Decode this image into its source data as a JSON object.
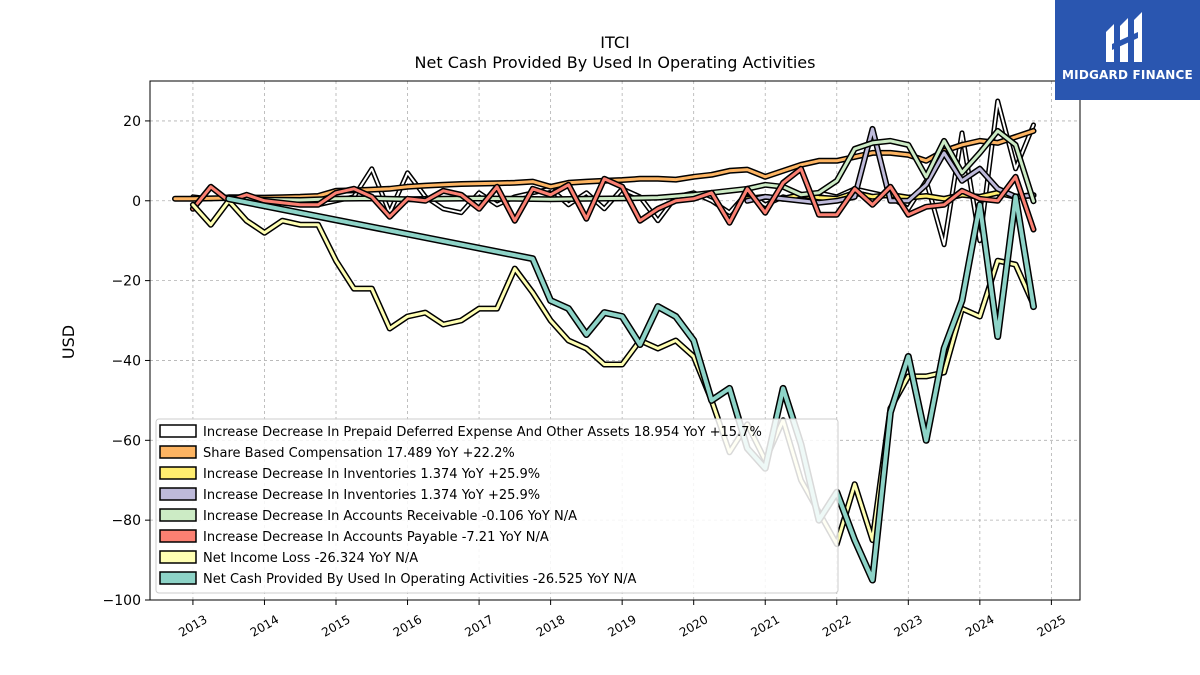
{
  "brand": {
    "name": "MIDGARD FINANCE",
    "bg": "#2a56b0"
  },
  "chart_data": {
    "type": "line",
    "title": "ITCI",
    "subtitle": "Net Cash Provided By Used In Operating Activities",
    "xlabel": "",
    "ylabel": "USD",
    "xlim": [
      2012.4,
      2025.4
    ],
    "ylim": [
      -100,
      30
    ],
    "xticks": [
      "2013",
      "2014",
      "2015",
      "2016",
      "2017",
      "2018",
      "2019",
      "2020",
      "2021",
      "2022",
      "2023",
      "2024",
      "2025"
    ],
    "yticks": [
      20,
      0,
      -20,
      -40,
      -60,
      -80,
      -100
    ],
    "grid": true,
    "legend_position": "lower-left",
    "series": [
      {
        "name": "Increase Decrease In Prepaid Deferred Expense And Other Assets  18.954 YoY +15.7%",
        "color": "#ffffff",
        "width": 2,
        "x": [
          2013.0,
          2013.25,
          2013.5,
          2013.75,
          2014.0,
          2014.25,
          2014.5,
          2014.75,
          2015.0,
          2015.25,
          2015.5,
          2015.75,
          2016.0,
          2016.25,
          2016.5,
          2016.75,
          2017.0,
          2017.25,
          2017.5,
          2017.75,
          2018.0,
          2018.25,
          2018.5,
          2018.75,
          2019.0,
          2019.25,
          2019.5,
          2019.75,
          2020.0,
          2020.25,
          2020.5,
          2020.75,
          2021.0,
          2021.25,
          2021.5,
          2021.75,
          2022.0,
          2022.25,
          2022.5,
          2022.75,
          2023.0,
          2023.25,
          2023.5,
          2023.75,
          2024.0,
          2024.25,
          2024.5,
          2024.75
        ],
        "y": [
          1,
          0.5,
          1,
          1,
          0.5,
          0,
          1,
          -1,
          0,
          1,
          8,
          -3,
          7,
          1,
          -2,
          -3,
          2,
          -1,
          1,
          2,
          3,
          -1,
          2,
          -2,
          3,
          1,
          -5,
          1,
          2,
          0,
          -3,
          2,
          -1,
          1,
          0,
          2,
          1,
          3,
          2,
          1,
          -2,
          5,
          -11,
          17,
          -10,
          25,
          8,
          19
        ]
      },
      {
        "name": "Share Based Compensation  17.489 YoY +22.2%",
        "color": "#fdb462",
        "width": 3,
        "x": [
          2012.75,
          2013.0,
          2013.25,
          2013.5,
          2013.75,
          2014.0,
          2014.25,
          2014.5,
          2014.75,
          2015.0,
          2015.25,
          2015.5,
          2015.75,
          2016.0,
          2016.25,
          2016.5,
          2016.75,
          2017.0,
          2017.25,
          2017.5,
          2017.75,
          2018.0,
          2018.25,
          2018.5,
          2018.75,
          2019.0,
          2019.25,
          2019.5,
          2019.75,
          2020.0,
          2020.25,
          2020.5,
          2020.75,
          2021.0,
          2021.25,
          2021.5,
          2021.75,
          2022.0,
          2022.25,
          2022.5,
          2022.75,
          2023.0,
          2023.25,
          2023.5,
          2023.75,
          2024.0,
          2024.25,
          2024.5,
          2024.75
        ],
        "y": [
          0.5,
          0.5,
          0.6,
          0.7,
          0.8,
          0.8,
          0.9,
          1.0,
          1.2,
          2.5,
          2.6,
          2.8,
          3.0,
          3.5,
          3.8,
          4.0,
          4.2,
          4.3,
          4.4,
          4.5,
          4.8,
          3.5,
          4.5,
          4.8,
          5.0,
          5.2,
          5.5,
          5.5,
          5.3,
          6.0,
          6.5,
          7.5,
          7.8,
          6.0,
          7.5,
          9.0,
          10.0,
          10.0,
          11.0,
          12.0,
          12.0,
          11.5,
          10.0,
          12.5,
          14.0,
          15.0,
          14.5,
          16.0,
          17.5
        ]
      },
      {
        "name": "Increase Decrease In Inventories  1.374 YoY +25.9%",
        "color": "#ffed6f",
        "width": 3,
        "x": [
          2020.75,
          2021.0,
          2021.25,
          2021.5,
          2021.75,
          2022.0,
          2022.25,
          2022.5,
          2022.75,
          2023.0,
          2023.25,
          2023.5,
          2023.75,
          2024.0,
          2024.25,
          2024.5,
          2024.75
        ],
        "y": [
          0.5,
          1.0,
          0.5,
          1.5,
          0.8,
          0.5,
          2.0,
          1.0,
          1.5,
          0.8,
          1.2,
          0.5,
          1.5,
          1.0,
          2.0,
          1.0,
          1.4
        ]
      },
      {
        "name": "Increase Decrease In Inventories  1.374 YoY +25.9%",
        "color": "#bebada",
        "width": 3,
        "x": [
          2020.75,
          2021.0,
          2021.25,
          2021.5,
          2021.75,
          2022.0,
          2022.25,
          2022.5,
          2022.75,
          2023.0,
          2023.25,
          2023.5,
          2023.75,
          2024.0,
          2024.25,
          2024.5,
          2024.75
        ],
        "y": [
          0,
          1.0,
          0.5,
          0.0,
          -0.5,
          0.0,
          1.0,
          18.0,
          0.0,
          0.0,
          4.0,
          12.0,
          5.0,
          8.0,
          3.0,
          1.0,
          1.4
        ]
      },
      {
        "name": "Increase Decrease In Accounts Receivable  -0.106 YoY N/A",
        "color": "#ccebc5",
        "width": 3,
        "x": [
          2013.5,
          2014.0,
          2014.5,
          2015.0,
          2015.5,
          2016.0,
          2016.5,
          2017.0,
          2017.5,
          2018.0,
          2018.5,
          2019.0,
          2019.5,
          2020.0,
          2020.25,
          2020.5,
          2020.75,
          2021.0,
          2021.25,
          2021.5,
          2021.75,
          2022.0,
          2022.25,
          2022.5,
          2022.75,
          2023.0,
          2023.25,
          2023.5,
          2023.75,
          2024.0,
          2024.25,
          2024.5,
          2024.75
        ],
        "y": [
          0.5,
          0.3,
          0.2,
          0.5,
          0.6,
          0.4,
          0.5,
          0.6,
          0.5,
          0.4,
          0.5,
          0.6,
          0.8,
          1.5,
          2.0,
          2.5,
          3.0,
          4.0,
          3.5,
          1.5,
          2.0,
          5.0,
          13.0,
          14.5,
          15.0,
          14.0,
          6.0,
          15.0,
          7.0,
          12.0,
          17.5,
          14.0,
          -0.1
        ]
      },
      {
        "name": "Increase Decrease In Accounts Payable  -7.21 YoY N/A",
        "color": "#fb8072",
        "width": 3,
        "x": [
          2013.0,
          2013.25,
          2013.5,
          2013.75,
          2014.0,
          2014.25,
          2014.5,
          2014.75,
          2015.0,
          2015.25,
          2015.5,
          2015.75,
          2016.0,
          2016.25,
          2016.5,
          2016.75,
          2017.0,
          2017.25,
          2017.5,
          2017.75,
          2018.0,
          2018.25,
          2018.5,
          2018.75,
          2019.0,
          2019.25,
          2019.5,
          2019.75,
          2020.0,
          2020.25,
          2020.5,
          2020.75,
          2021.0,
          2021.25,
          2021.5,
          2021.75,
          2022.0,
          2022.25,
          2022.5,
          2022.75,
          2023.0,
          2023.25,
          2023.5,
          2023.75,
          2024.0,
          2024.25,
          2024.5,
          2024.75
        ],
        "y": [
          -2,
          3.5,
          0,
          1.5,
          0,
          -0.5,
          -1,
          -1,
          2,
          3,
          1,
          -4,
          0.5,
          0,
          2.5,
          1.5,
          -2,
          3.5,
          -5,
          3,
          1.5,
          4,
          -4.5,
          5.5,
          3.5,
          -5,
          -2,
          0,
          0.5,
          2,
          -5.5,
          3,
          -3,
          4.5,
          8,
          -3.5,
          -3.5,
          3,
          -1,
          3.5,
          -3.5,
          -1.5,
          -1,
          2.5,
          0.5,
          0,
          6,
          -7.2
        ]
      },
      {
        "name": "Net Income Loss  -26.324 YoY N/A",
        "color": "#ffffb3",
        "width": 3,
        "x": [
          2013.0,
          2013.25,
          2013.5,
          2013.75,
          2014.0,
          2014.25,
          2014.5,
          2014.75,
          2015.0,
          2015.25,
          2015.5,
          2015.75,
          2016.0,
          2016.25,
          2016.5,
          2016.75,
          2017.0,
          2017.25,
          2017.5,
          2017.75,
          2018.0,
          2018.25,
          2018.5,
          2018.75,
          2019.0,
          2019.25,
          2019.5,
          2019.75,
          2020.0,
          2020.25,
          2020.5,
          2020.75,
          2021.0,
          2021.25,
          2021.5,
          2021.75,
          2022.0,
          2022.25,
          2022.5,
          2022.75,
          2023.0,
          2023.25,
          2023.5,
          2023.75,
          2024.0,
          2024.25,
          2024.5,
          2024.75
        ],
        "y": [
          -1,
          -6,
          0,
          -5,
          -8,
          -5,
          -6,
          -6,
          -15,
          -22,
          -22,
          -32,
          -29,
          -28,
          -31,
          -30,
          -27,
          -27,
          -17,
          -23,
          -30,
          -35,
          -37,
          -41,
          -41,
          -35,
          -37,
          -35,
          -39,
          -50,
          -63,
          -56,
          -65,
          -55,
          -70,
          -78,
          -86,
          -71,
          -85,
          -52,
          -44,
          -44,
          -43,
          -27,
          -29,
          -15,
          -16,
          -26
        ]
      },
      {
        "name": "Net Cash Provided By Used In Operating Activities  -26.525 YoY N/A",
        "color": "#8dd3c7",
        "width": 4,
        "x": [
          2013.5,
          2017.75,
          2018.0,
          2018.25,
          2018.5,
          2018.75,
          2019.0,
          2019.25,
          2019.5,
          2019.75,
          2020.0,
          2020.25,
          2020.5,
          2020.75,
          2021.0,
          2021.25,
          2021.5,
          2021.75,
          2022.0,
          2022.25,
          2022.5,
          2022.75,
          2023.0,
          2023.25,
          2023.5,
          2023.75,
          2024.0,
          2024.25,
          2024.5,
          2024.75
        ],
        "y": [
          0.5,
          -14.5,
          -25,
          -27,
          -33.5,
          -28,
          -29,
          -36,
          -26.5,
          -29,
          -35,
          -50,
          -47,
          -62,
          -67,
          -47,
          -61,
          -80,
          -73,
          -85,
          -95,
          -53,
          -39,
          -60,
          -37,
          -25,
          -1,
          -34,
          1,
          -26.5
        ]
      }
    ]
  }
}
